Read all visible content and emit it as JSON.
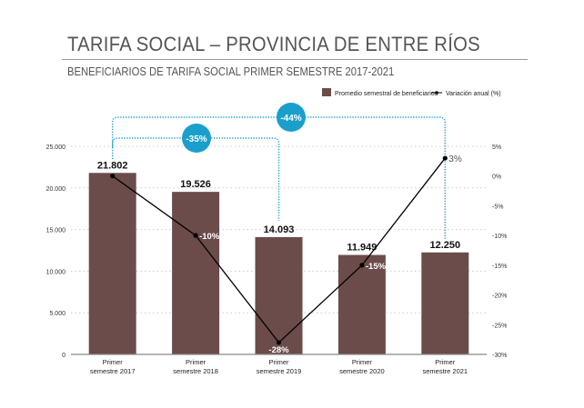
{
  "title": "TARIFA SOCIAL – PROVINCIA DE ENTRE RÍOS",
  "subtitle": "BENEFICIARIOS DE TARIFA SOCIAL PRIMER SEMESTRE 2017-2021",
  "chart_data": {
    "type": "bar",
    "categories": [
      [
        "Primer",
        "semestre 2017"
      ],
      [
        "Primer",
        "semestre 2018"
      ],
      [
        "Primer",
        "semestre 2019"
      ],
      [
        "Primer",
        "semestre 2020"
      ],
      [
        "Primer",
        "semestre 2021"
      ]
    ],
    "series": [
      {
        "name": "Promedio semestral de beneficiarios",
        "type": "bar",
        "axis": "left",
        "values": [
          21802,
          19526,
          14093,
          11949,
          12250
        ],
        "labels": [
          "21.802",
          "19.526",
          "14.093",
          "11.949",
          "12.250"
        ],
        "color": "#6b4c4a"
      },
      {
        "name": "Variación anual (%)",
        "type": "line",
        "axis": "right",
        "values": [
          0,
          -10,
          -28,
          -15,
          3
        ],
        "labels": [
          "",
          "-10%",
          "-28%",
          "-15%",
          "3%"
        ],
        "color": "#000000"
      }
    ],
    "left_axis": {
      "range": [
        0,
        25000
      ],
      "ticks": [
        0,
        5000,
        10000,
        15000,
        20000,
        25000
      ],
      "tick_labels": [
        "0",
        "5.000",
        "10.000",
        "15.000",
        "20.000",
        "25.000"
      ]
    },
    "right_axis": {
      "range": [
        -30,
        5
      ],
      "ticks": [
        5,
        0,
        -5,
        -10,
        -15,
        -20,
        -25,
        -30
      ],
      "tick_labels": [
        "5%",
        "0%",
        "-5%",
        "-10%",
        "-15%",
        "-20%",
        "-25%",
        "-30%"
      ]
    },
    "annotations": [
      {
        "label": "-35%",
        "from": 0,
        "to": 2,
        "color": "#1a9fcc"
      },
      {
        "label": "-44%",
        "from": 0,
        "to": 4,
        "color": "#1a9fcc"
      }
    ],
    "grid": true,
    "legend": "top-right"
  }
}
